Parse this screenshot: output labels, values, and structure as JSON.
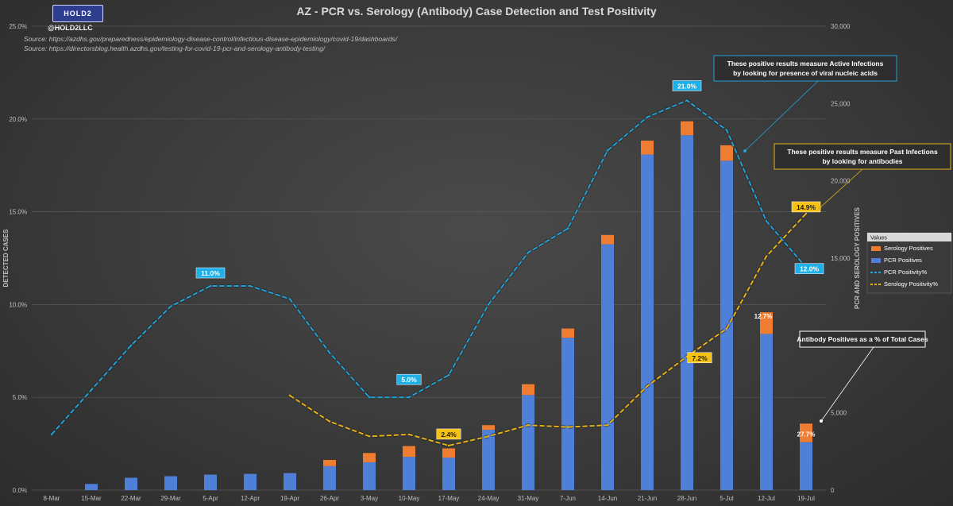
{
  "header": {
    "logo_text": "HOLD2",
    "handle": "@HOLD2LLC",
    "title": "AZ - PCR vs. Serology (Antibody) Case Detection and Test Positivity",
    "sources": [
      "Source: https://azdhs.gov/preparedness/epidemiology-disease-control/infectious-disease-epidemiology/covid-19/dashboards/",
      "Source: https://directorsblog.health.azdhs.gov/testing-for-covid-19-pcr-and-serology-antibody-testing/"
    ]
  },
  "colors": {
    "pcr_bar": "#4f7fd6",
    "serology_bar": "#ee7d31",
    "pcr_line": "#1fa3d8",
    "serology_line": "#e6b219",
    "axis_text": "#bfbfbf",
    "grid": "#5a5a5a"
  },
  "chart_data": {
    "type": "bar",
    "title": "AZ - PCR vs. Serology (Antibody) Case Detection and Test Positivity",
    "categories": [
      "8-Mar",
      "15-Mar",
      "22-Mar",
      "29-Mar",
      "5-Apr",
      "12-Apr",
      "19-Apr",
      "26-Apr",
      "3-May",
      "10-May",
      "17-May",
      "24-May",
      "31-May",
      "7-Jun",
      "14-Jun",
      "21-Jun",
      "28-Jun",
      "5-Jul",
      "12-Jul",
      "19-Jul"
    ],
    "left_axis": {
      "label": "DETECTED CASES",
      "ylim": [
        0,
        25
      ],
      "ticks": [
        "0.0%",
        "5.0%",
        "10.0%",
        "15.0%",
        "20.0%",
        "25.0%"
      ]
    },
    "right_axis": {
      "label": "PCR AND SEROLOGY POSITIVES",
      "ylim": [
        0,
        30000
      ],
      "ticks": [
        "0",
        "5,000",
        "10,000",
        "15,000",
        "20,000",
        "25,000",
        "30,000"
      ]
    },
    "series": [
      {
        "name": "Serology Positives",
        "kind": "stacked-bar",
        "axis": "right",
        "values": [
          0,
          0,
          0,
          0,
          0,
          0,
          0,
          400,
          600,
          700,
          600,
          300,
          700,
          600,
          600,
          900,
          900,
          1000,
          1400,
          1200
        ]
      },
      {
        "name": "PCR Positives",
        "kind": "stacked-bar",
        "axis": "right",
        "values": [
          0,
          400,
          800,
          900,
          1000,
          1050,
          1100,
          1550,
          1800,
          2150,
          2100,
          3900,
          6150,
          9850,
          15900,
          21700,
          22950,
          21300,
          10100,
          3100
        ]
      },
      {
        "name": "PCR Positivity%",
        "kind": "line",
        "axis": "left",
        "values": [
          3.0,
          5.4,
          7.8,
          9.9,
          11.0,
          11.0,
          10.3,
          7.4,
          5.0,
          5.0,
          6.2,
          10.0,
          12.8,
          14.1,
          18.3,
          20.1,
          21.0,
          19.4,
          14.5,
          12.0
        ]
      },
      {
        "name": "Serology Positivity%",
        "kind": "line",
        "axis": "left",
        "values": [
          null,
          null,
          null,
          null,
          null,
          null,
          5.1,
          3.7,
          2.9,
          3.0,
          2.4,
          2.9,
          3.5,
          3.4,
          3.5,
          5.6,
          7.2,
          8.7,
          12.6,
          14.9
        ]
      }
    ],
    "legend": {
      "title": "Values",
      "position": "right"
    },
    "point_labels": [
      {
        "series": "PCR Positivity%",
        "index": 4,
        "text": "11.0%"
      },
      {
        "series": "PCR Positivity%",
        "index": 9,
        "text": "5.0%"
      },
      {
        "series": "PCR Positivity%",
        "index": 16,
        "text": "21.0%"
      },
      {
        "series": "PCR Positivity%",
        "index": 19,
        "text": "12.0%"
      },
      {
        "series": "Serology Positivity%",
        "index": 10,
        "text": "2.4%"
      },
      {
        "series": "Serology Positivity%",
        "index": 16,
        "text": "7.2%"
      },
      {
        "series": "Serology Positivity%",
        "index": 19,
        "text": "14.9%"
      }
    ],
    "bar_labels": [
      {
        "index": 18,
        "text": "12.7%"
      },
      {
        "index": 19,
        "text": "27.7%"
      }
    ],
    "annotations": [
      {
        "lines": [
          "These positive results measure Active Infections",
          "by looking for presence of viral nucleic acids"
        ],
        "style": "pcr"
      },
      {
        "lines": [
          "These positive results measure Past Infections",
          "by looking for antibodies"
        ],
        "style": "serology"
      },
      {
        "lines": [
          "Antibody Positives as a % of Total Cases"
        ],
        "style": "neutral"
      }
    ]
  }
}
